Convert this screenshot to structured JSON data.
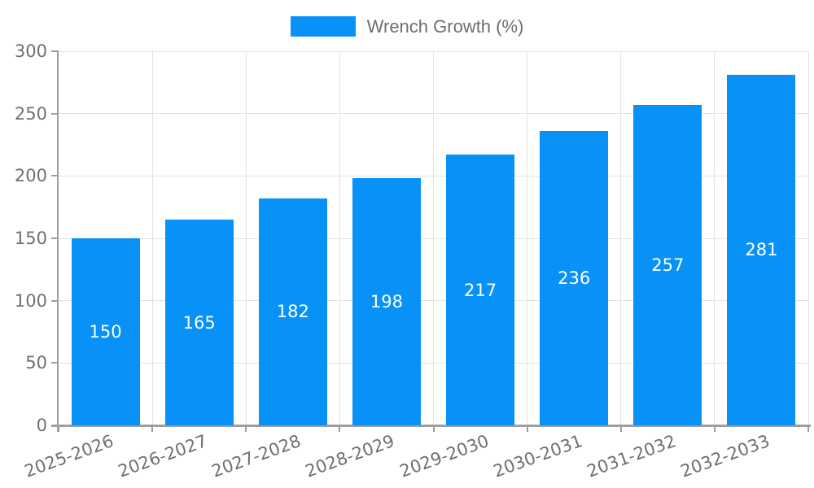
{
  "chart_data": {
    "type": "bar",
    "title": "",
    "xlabel": "",
    "ylabel": "",
    "categories": [
      "2025-2026",
      "2026-2027",
      "2027-2028",
      "2028-2029",
      "2029-2030",
      "2030-2031",
      "2031-2032",
      "2032-2033"
    ],
    "series": [
      {
        "name": "Wrench Growth (%)",
        "values": [
          150,
          165,
          182,
          198,
          217,
          236,
          257,
          281
        ]
      }
    ],
    "value_labels": [
      150,
      165,
      182,
      198,
      217,
      236,
      257,
      281
    ],
    "ylim": [
      0,
      300
    ],
    "yticks": [
      0,
      50,
      100,
      150,
      200,
      250,
      300
    ],
    "grid": true,
    "legend_position": "top-center",
    "value_label_position": "inside-center",
    "colors": {
      "bar": "#0892f8",
      "grid": "#e3e3e3",
      "axis": "#9e9e9e",
      "tick_label": "#707070",
      "legend_label": "#6e6e6e",
      "value_label": "#ffffff",
      "background": "#ffffff"
    }
  }
}
